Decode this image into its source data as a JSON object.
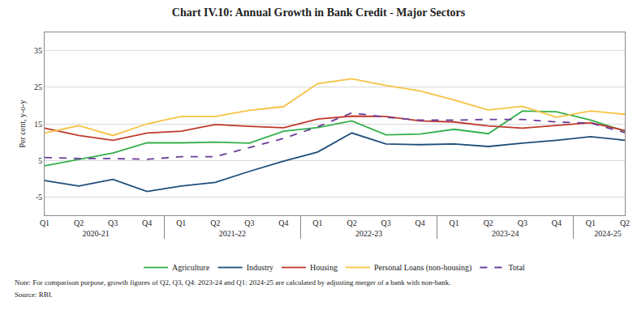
{
  "chart_data": {
    "type": "line",
    "title": "Chart IV.10: Annual Growth in Bank Credit - Major Sectors",
    "y_label": "Per cent, y-o-y",
    "categories": [
      "Q1",
      "Q2",
      "Q3",
      "Q4",
      "Q1",
      "Q2",
      "Q3",
      "Q4",
      "Q1",
      "Q2",
      "Q3",
      "Q4",
      "Q1",
      "Q2",
      "Q3",
      "Q4",
      "Q1",
      "Q2"
    ],
    "groups": [
      "2020-21",
      "2020-21",
      "2020-21",
      "2020-21",
      "2021-22",
      "2021-22",
      "2021-22",
      "2021-22",
      "2022-23",
      "2022-23",
      "2022-23",
      "2022-23",
      "2023-24",
      "2023-24",
      "2023-24",
      "2023-24",
      "2024-25",
      "2024-25"
    ],
    "series": [
      {
        "name": "Agriculture",
        "color": "#33b04a",
        "line_style": "solid",
        "values": [
          3.5,
          5.3,
          7,
          9.8,
          9.8,
          10,
          9.7,
          13,
          14,
          15.8,
          12,
          12.2,
          13.5,
          12.3,
          18.5,
          18.3,
          16,
          13
        ]
      },
      {
        "name": "Industry",
        "color": "#1f4e79",
        "line_style": "solid",
        "values": [
          -0.5,
          -2,
          -0.2,
          -3.5,
          -2,
          -1,
          2,
          4.8,
          7.3,
          12.5,
          9.5,
          9.3,
          9.5,
          8.8,
          9.7,
          10.5,
          11.5,
          10.5
        ]
      },
      {
        "name": "Housing",
        "color": "#c0392b",
        "line_style": "solid",
        "values": [
          13.8,
          11.8,
          10.5,
          12.5,
          13,
          14.8,
          14.3,
          13.9,
          16.3,
          17.1,
          17,
          15.8,
          15.5,
          14.4,
          13.8,
          14.6,
          15.3,
          13.2
        ]
      },
      {
        "name": "Personal Loans (non-housing)",
        "color": "#f5c242",
        "line_style": "solid",
        "values": [
          12.5,
          14.5,
          11.8,
          15,
          17,
          17,
          18.7,
          19.7,
          26,
          27.3,
          25.5,
          24,
          21.5,
          18.8,
          19.8,
          16.8,
          18.5,
          17.6
        ]
      },
      {
        "name": "Total",
        "color": "#6a3d9a",
        "line_style": "dashed",
        "values": [
          5.8,
          5.5,
          5.5,
          5.3,
          6,
          6,
          8.5,
          11,
          14.2,
          18,
          16.8,
          16,
          16,
          16.2,
          16.2,
          15.5,
          15.2,
          12.6
        ]
      }
    ],
    "ylim": [
      -10,
      40
    ],
    "yticks": [
      -5,
      5,
      15,
      25,
      35
    ],
    "grid": true,
    "legend": "bottom",
    "annotations": [
      "Note: For comparison purpose, growth figures of Q2, Q3, Q4: 2023-24 and Q1: 2024-25 are calculated by adjusting merger of a bank with non-bank.",
      "Source: RBI."
    ]
  }
}
